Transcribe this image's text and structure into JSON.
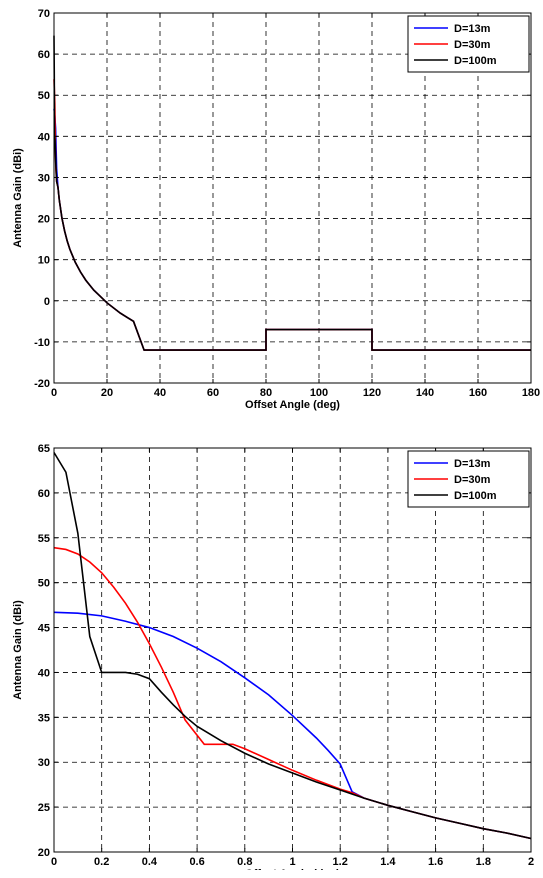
{
  "chart_data": [
    {
      "type": "line",
      "xlabel": "Offset Angle (deg)",
      "ylabel": "Antenna Gain (dBi)",
      "xlim": [
        0,
        180
      ],
      "ylim": [
        -20,
        70
      ],
      "xticks": [
        0,
        20,
        40,
        60,
        80,
        100,
        120,
        140,
        160,
        180
      ],
      "yticks": [
        -20,
        -10,
        0,
        10,
        20,
        30,
        40,
        50,
        60,
        70
      ],
      "grid": true,
      "legend_position": "top-right",
      "series": [
        {
          "name": "D=13m",
          "color": "#0000ff",
          "x": [
            0,
            0.3,
            0.6,
            1,
            1.5,
            2,
            3,
            4,
            5,
            6,
            8,
            10,
            12,
            15,
            20,
            25,
            30,
            34,
            40,
            60,
            80,
            80,
            100,
            120,
            120,
            140,
            160,
            180
          ],
          "y": [
            46.7,
            45,
            42,
            32,
            27.6,
            24.5,
            20.1,
            17,
            14.5,
            12.5,
            9.4,
            7,
            5,
            2.6,
            -0.5,
            -3,
            -5,
            -12,
            -12,
            -12,
            -12,
            -7,
            -7,
            -7,
            -12,
            -12,
            -12,
            -12
          ]
        },
        {
          "name": "D=30m",
          "color": "#ff0000",
          "x": [
            0,
            0.3,
            0.5,
            0.7,
            1,
            1.5,
            2,
            3,
            4,
            5,
            6,
            8,
            10,
            12,
            15,
            20,
            25,
            30,
            34,
            40,
            60,
            80,
            80,
            100,
            120,
            120,
            140,
            160,
            180
          ],
          "y": [
            53.9,
            48,
            38,
            32,
            29,
            27.6,
            24.5,
            20.1,
            17,
            14.5,
            12.5,
            9.4,
            7,
            5,
            2.6,
            -0.5,
            -3,
            -5,
            -12,
            -12,
            -12,
            -12,
            -7,
            -7,
            -7,
            -12,
            -12,
            -12,
            -12
          ]
        },
        {
          "name": "D=100m",
          "color": "#000000",
          "x": [
            0,
            0.1,
            0.2,
            0.4,
            0.7,
            1,
            1.5,
            2,
            3,
            4,
            5,
            6,
            8,
            10,
            12,
            15,
            20,
            25,
            30,
            34,
            40,
            60,
            80,
            80,
            100,
            120,
            120,
            140,
            160,
            180
          ],
          "y": [
            64.5,
            55,
            40,
            39,
            33,
            29,
            27.6,
            24.5,
            20.1,
            17,
            14.5,
            12.5,
            9.4,
            7,
            5,
            2.6,
            -0.5,
            -3,
            -5,
            -12,
            -12,
            -12,
            -12,
            -7,
            -7,
            -7,
            -12,
            -12,
            -12,
            -12
          ]
        }
      ]
    },
    {
      "type": "line",
      "xlabel": "Offset Angle (deg)",
      "ylabel": "Antenna Gain (dBi)",
      "xlim": [
        0,
        2
      ],
      "ylim": [
        20,
        65
      ],
      "xticks": [
        0,
        0.2,
        0.4,
        0.6,
        0.8,
        1,
        1.2,
        1.4,
        1.6,
        1.8,
        2
      ],
      "xtick_labels": [
        "0",
        "0.2",
        "0.4",
        "0.6",
        "0.8",
        "1",
        "1.2",
        "1.4",
        "1.6",
        "1.8",
        "2"
      ],
      "yticks": [
        20,
        25,
        30,
        35,
        40,
        45,
        50,
        55,
        60,
        65
      ],
      "grid": true,
      "legend_position": "top-right",
      "series": [
        {
          "name": "D=13m",
          "color": "#0000ff",
          "x": [
            0,
            0.1,
            0.2,
            0.3,
            0.4,
            0.5,
            0.6,
            0.7,
            0.8,
            0.9,
            1.0,
            1.1,
            1.15,
            1.2,
            1.25,
            1.3,
            1.4,
            1.5,
            1.6,
            1.7,
            1.8,
            1.9,
            2.0
          ],
          "y": [
            46.7,
            46.6,
            46.3,
            45.7,
            45.0,
            44.0,
            42.7,
            41.2,
            39.4,
            37.5,
            35.2,
            32.7,
            31.3,
            29.8,
            26.7,
            26.0,
            25.2,
            24.5,
            23.8,
            23.2,
            22.6,
            22.1,
            21.5
          ]
        },
        {
          "name": "D=30m",
          "color": "#ff0000",
          "x": [
            0,
            0.05,
            0.1,
            0.15,
            0.2,
            0.25,
            0.3,
            0.35,
            0.4,
            0.45,
            0.5,
            0.55,
            0.6,
            0.63,
            0.75,
            0.8,
            0.9,
            1.0,
            1.1,
            1.2,
            1.25,
            1.3,
            1.4,
            1.5,
            1.6,
            1.7,
            1.8,
            1.9,
            2.0
          ],
          "y": [
            53.9,
            53.7,
            53.2,
            52.3,
            51.1,
            49.5,
            47.7,
            45.6,
            43.2,
            40.6,
            37.8,
            34.7,
            33.0,
            32.0,
            32.0,
            31.5,
            30.3,
            29.1,
            28.0,
            27.0,
            26.6,
            26.0,
            25.2,
            24.5,
            23.8,
            23.2,
            22.6,
            22.1,
            21.5
          ]
        },
        {
          "name": "D=100m",
          "color": "#000000",
          "x": [
            0,
            0.05,
            0.1,
            0.15,
            0.2,
            0.25,
            0.3,
            0.35,
            0.4,
            0.45,
            0.5,
            0.55,
            0.6,
            0.7,
            0.8,
            0.9,
            1.0,
            1.1,
            1.2,
            1.3,
            1.4,
            1.5,
            1.6,
            1.7,
            1.8,
            1.9,
            2.0
          ],
          "y": [
            64.5,
            62.3,
            55.5,
            44.0,
            40.0,
            40.0,
            40.0,
            39.8,
            39.3,
            37.8,
            36.4,
            35.1,
            34.0,
            32.4,
            31.0,
            29.8,
            28.8,
            27.8,
            26.9,
            26.0,
            25.2,
            24.5,
            23.8,
            23.2,
            22.6,
            22.1,
            21.5
          ]
        }
      ]
    }
  ]
}
